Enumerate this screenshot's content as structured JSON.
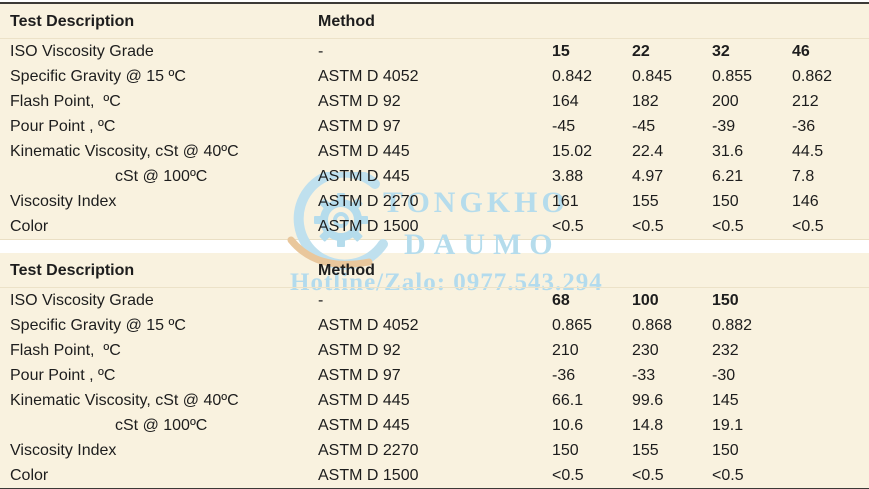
{
  "page": {
    "background": "#ffffff",
    "panel_background": "#f9f2df",
    "rule_color": "#3c3a36",
    "text_color": "#1d1d1d"
  },
  "watermark": {
    "brand_top": "TONGKHO",
    "brand_bottom": "DAUMO",
    "hotline": "Hotline/Zalo: 0977.543.294",
    "blue": "#b5dcec",
    "orange": "#e9c79c",
    "logo_icon": "gear-swoosh-icon"
  },
  "tables": [
    {
      "header": {
        "test_description": "Test Description",
        "method": "Method"
      },
      "rows": [
        {
          "label": "ISO Viscosity Grade",
          "method": "-",
          "values": [
            "15",
            "22",
            "32",
            "46"
          ],
          "bold_values": true
        },
        {
          "label": "Specific Gravity @ 15 ºC",
          "method": "ASTM D 4052",
          "values": [
            "0.842",
            "0.845",
            "0.855",
            "0.862"
          ]
        },
        {
          "label": "Flash Point,  ºC",
          "method": "ASTM D 92",
          "values": [
            "164",
            "182",
            "200",
            "212"
          ]
        },
        {
          "label": "Pour Point , ºC",
          "method": "ASTM D 97",
          "values": [
            "-45",
            "-45",
            "-39",
            "-36"
          ]
        },
        {
          "label": "Kinematic Viscosity, cSt @ 40ºC",
          "method": "ASTM D 445",
          "values": [
            "15.02",
            "22.4",
            "31.6",
            "44.5"
          ]
        },
        {
          "label": "cSt @ 100ºC",
          "method": "ASTM D 445",
          "values": [
            "3.88",
            "4.97",
            "6.21",
            "7.8"
          ],
          "indent": true
        },
        {
          "label": "Viscosity Index",
          "method": "ASTM D 2270",
          "values": [
            "161",
            "155",
            "150",
            "146"
          ]
        },
        {
          "label": "Color",
          "method": "ASTM D 1500",
          "values": [
            "<0.5",
            "<0.5",
            "<0.5",
            "<0.5"
          ]
        }
      ]
    },
    {
      "header": {
        "test_description": "Test Description",
        "method": "Method"
      },
      "rows": [
        {
          "label": "ISO Viscosity Grade",
          "method": "-",
          "values": [
            "68",
            "100",
            "150"
          ],
          "bold_values": true
        },
        {
          "label": "Specific Gravity @ 15 ºC",
          "method": "ASTM D 4052",
          "values": [
            "0.865",
            "0.868",
            "0.882"
          ]
        },
        {
          "label": "Flash Point,  ºC",
          "method": "ASTM D 92",
          "values": [
            "210",
            "230",
            "232"
          ]
        },
        {
          "label": "Pour Point , ºC",
          "method": "ASTM D 97",
          "values": [
            "-36",
            "-33",
            "-30"
          ]
        },
        {
          "label": "Kinematic Viscosity, cSt @ 40ºC",
          "method": "ASTM D 445",
          "values": [
            "66.1",
            "99.6",
            "145"
          ]
        },
        {
          "label": "cSt @ 100ºC",
          "method": "ASTM D 445",
          "values": [
            "10.6",
            "14.8",
            "19.1"
          ],
          "indent": true
        },
        {
          "label": "Viscosity Index",
          "method": "ASTM D 2270",
          "values": [
            "150",
            "155",
            "150"
          ]
        },
        {
          "label": "Color",
          "method": "ASTM D 1500",
          "values": [
            "<0.5",
            "<0.5",
            "<0.5"
          ]
        }
      ]
    }
  ]
}
